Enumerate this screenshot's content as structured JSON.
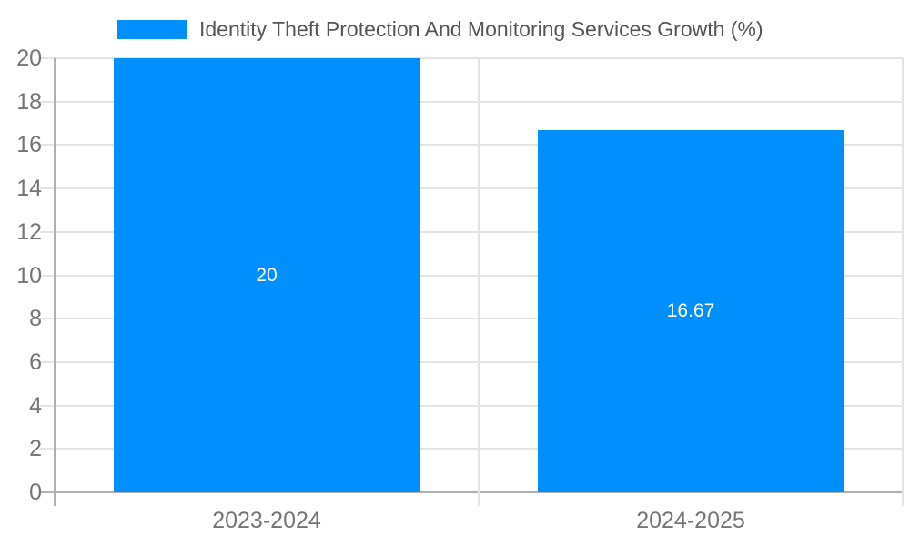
{
  "chart_data": {
    "type": "bar",
    "title": "Identity Theft Protection And Monitoring Services Growth (%)",
    "legend": {
      "position": "top",
      "label": "Identity Theft Protection And Monitoring Services Growth (%)"
    },
    "categories": [
      "2023-2024",
      "2024-2025"
    ],
    "values": [
      20,
      16.67
    ],
    "value_labels": [
      "20",
      "16.67"
    ],
    "xlabel": "",
    "ylabel": "",
    "ylim": [
      0,
      20
    ],
    "yticks": [
      0,
      2,
      4,
      6,
      8,
      10,
      12,
      14,
      16,
      18,
      20
    ],
    "grid": true,
    "colors": {
      "bar": "#008FFB",
      "value_label": "#FFFFFF",
      "axis_text": "#757575",
      "legend_text": "#555555",
      "gridline": "#E4E4E4",
      "axis_line": "#B0B0B0",
      "background": "#FFFFFF"
    }
  }
}
